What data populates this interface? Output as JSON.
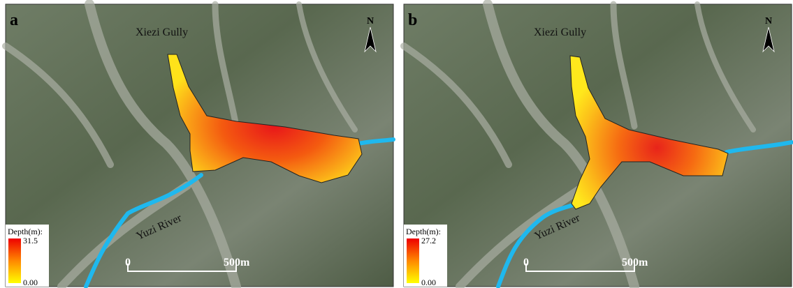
{
  "panels": [
    {
      "label": "a",
      "place_labels": [
        "Xiezi Gully",
        "Yuzi River"
      ],
      "north": "N",
      "legend": {
        "title": "Depth(m):",
        "max": "31.5",
        "min": "0.00"
      },
      "scale_bar": {
        "start": "0",
        "end": "500m"
      }
    },
    {
      "label": "b",
      "place_labels": [
        "Xiezi Gully",
        "Yuzi River"
      ],
      "north": "N",
      "legend": {
        "title": "Depth(m):",
        "max": "27.2",
        "min": "0.00"
      },
      "scale_bar": {
        "start": "0",
        "end": "500m"
      }
    }
  ]
}
